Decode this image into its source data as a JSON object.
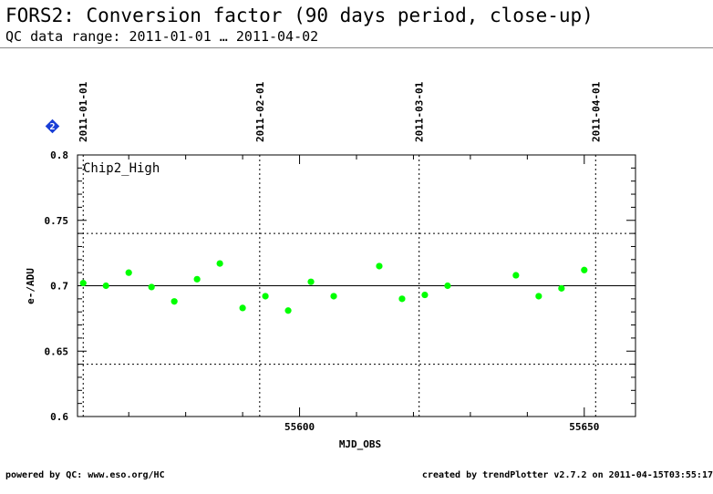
{
  "header": {
    "title": "FORS2: Conversion factor (90 days period, close-up)",
    "subtitle": "QC data range: 2011-01-01 … 2011-04-02"
  },
  "footer": {
    "left": "powered by QC: www.eso.org/HC",
    "right": "created by trendPlotter v2.7.2 on 2011-04-15T03:55:17"
  },
  "badge": {
    "label": "2",
    "color": "#1a3fd6"
  },
  "colors": {
    "points": "#00ff00",
    "axes": "#000000"
  },
  "chart_data": {
    "type": "scatter",
    "panel_label": "Chip2_High",
    "xlabel": "MJD_OBS",
    "ylabel": "e-/ADU",
    "xlim": [
      55561,
      55659
    ],
    "ylim": [
      0.6,
      0.8
    ],
    "x_ticks": [
      55600,
      55650
    ],
    "y_ticks": [
      0.6,
      0.65,
      0.7,
      0.75,
      0.8
    ],
    "y_tick_labels": [
      "0.6",
      "0.65",
      "0.7",
      "0.75",
      "0.8"
    ],
    "reference_line": 0.7,
    "dotted_lines": [
      0.64,
      0.74
    ],
    "date_markers": [
      {
        "label": "2011-01-01",
        "mjd": 55562
      },
      {
        "label": "2011-02-01",
        "mjd": 55593
      },
      {
        "label": "2011-03-01",
        "mjd": 55621
      },
      {
        "label": "2011-04-01",
        "mjd": 55652
      }
    ],
    "points": [
      {
        "x": 55562,
        "y": 0.702
      },
      {
        "x": 55566,
        "y": 0.7
      },
      {
        "x": 55570,
        "y": 0.71
      },
      {
        "x": 55574,
        "y": 0.699
      },
      {
        "x": 55578,
        "y": 0.688
      },
      {
        "x": 55582,
        "y": 0.705
      },
      {
        "x": 55586,
        "y": 0.717
      },
      {
        "x": 55590,
        "y": 0.683
      },
      {
        "x": 55594,
        "y": 0.692
      },
      {
        "x": 55598,
        "y": 0.681
      },
      {
        "x": 55602,
        "y": 0.703
      },
      {
        "x": 55606,
        "y": 0.692
      },
      {
        "x": 55614,
        "y": 0.715
      },
      {
        "x": 55618,
        "y": 0.69
      },
      {
        "x": 55622,
        "y": 0.693
      },
      {
        "x": 55626,
        "y": 0.7
      },
      {
        "x": 55638,
        "y": 0.708
      },
      {
        "x": 55642,
        "y": 0.692
      },
      {
        "x": 55646,
        "y": 0.698
      },
      {
        "x": 55650,
        "y": 0.712
      }
    ]
  }
}
